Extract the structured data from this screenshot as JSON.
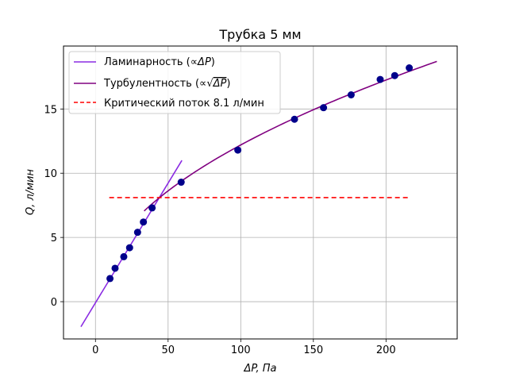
{
  "chart_data": {
    "type": "scatter",
    "title": "Трубка 5 мм",
    "xlabel": "ΔP, Па",
    "ylabel": "Q, л/мин",
    "xlim": [
      -22,
      249
    ],
    "ylim": [
      -2.9,
      19.9
    ],
    "xticks": [
      0,
      50,
      100,
      150,
      200
    ],
    "yticks": [
      0,
      5,
      10,
      15
    ],
    "grid": true,
    "legend_position": "top-left",
    "points": {
      "color": "#00008b",
      "x": [
        10,
        13.5,
        19.5,
        23.5,
        29,
        33,
        39,
        59,
        98,
        137,
        157,
        176,
        196,
        206,
        216
      ],
      "y": [
        1.8,
        2.6,
        3.5,
        4.2,
        5.4,
        6.2,
        7.3,
        9.3,
        11.8,
        14.2,
        15.1,
        16.1,
        17.3,
        17.6,
        18.2
      ]
    },
    "series": [
      {
        "name": "Ламинарность (∝ΔP)",
        "kind": "line",
        "color": "#8a2be2",
        "x": [
          -10,
          59.5
        ],
        "y": [
          -1.95,
          11
        ]
      },
      {
        "name": "Турбулентность (∝√ΔP)",
        "kind": "curve",
        "color": "#800080",
        "coefficient": 1.22,
        "x_range": [
          33.5,
          235
        ]
      },
      {
        "name": "Критический поток 8.1 л/мин",
        "kind": "hline",
        "color": "#ff0000",
        "dashed": true,
        "y": 8.1,
        "x_range": [
          9.5,
          215
        ]
      }
    ],
    "legend": {
      "laminar_prefix": "Ламинарность (∝",
      "laminar_math": "ΔP",
      "laminar_suffix": ")",
      "turbulent_prefix": "Турбулентность (∝",
      "turbulent_math": "ΔP",
      "turbulent_suffix": ")",
      "critical": "Критический поток 8.1 л/мин"
    }
  }
}
